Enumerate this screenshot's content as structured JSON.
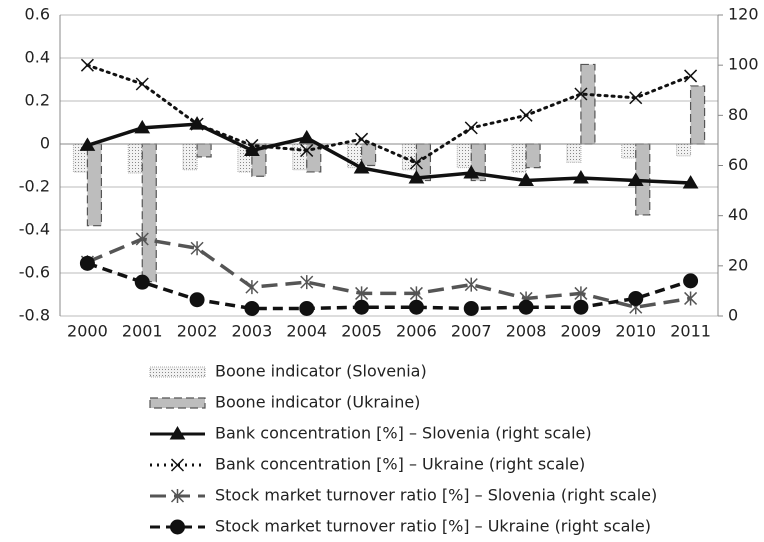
{
  "chart_data": {
    "type": "bar",
    "categories": [
      "2000",
      "2001",
      "2002",
      "2003",
      "2004",
      "2005",
      "2006",
      "2007",
      "2008",
      "2009",
      "2010",
      "2011"
    ],
    "ylim": [
      -0.8,
      0.6
    ],
    "yticks": [
      0.6,
      0.4,
      0.2,
      0,
      -0.2,
      -0.4,
      -0.6,
      -0.8
    ],
    "y2lim": [
      0,
      120
    ],
    "y2ticks": [
      0,
      20,
      40,
      60,
      80,
      100,
      120
    ],
    "grid": true,
    "legend": "bottom",
    "series": [
      {
        "name": "Boone indicator (Slovenia)",
        "type": "bar",
        "color": "#e6e6e6",
        "pattern": "dotted",
        "values": [
          -0.13,
          -0.135,
          -0.12,
          -0.13,
          -0.12,
          -0.11,
          -0.12,
          -0.11,
          -0.13,
          -0.085,
          -0.065,
          -0.055
        ]
      },
      {
        "name": "Boone indicator (Ukraine)",
        "type": "bar",
        "color": "#bdbdbd",
        "pattern": "dashed",
        "values": [
          -0.38,
          -0.64,
          -0.06,
          -0.15,
          -0.13,
          -0.1,
          -0.17,
          -0.17,
          -0.11,
          0.37,
          -0.33,
          0.27
        ]
      },
      {
        "name": "Bank concentration [%] – Slovenia (right scale)",
        "type": "line",
        "axis": "y2",
        "color": "#111111",
        "dash": "solid",
        "marker": "triangle",
        "values": [
          68,
          75,
          76.5,
          66,
          71,
          59,
          55,
          57,
          54,
          55,
          54,
          53
        ]
      },
      {
        "name": "Bank concentration [%] – Ukraine (right scale)",
        "type": "line",
        "axis": "y2",
        "color": "#111111",
        "dash": "dotted",
        "marker": "x",
        "values": [
          100,
          92.5,
          76.5,
          68,
          66,
          70.5,
          61,
          75,
          80,
          88.5,
          87,
          95.7
        ]
      },
      {
        "name": "Stock market turnover ratio [%] – Slovenia (right scale)",
        "type": "line",
        "axis": "y2",
        "color": "#555555",
        "dash": "dashed",
        "marker": "star",
        "values": [
          21.5,
          30.7,
          27,
          11.5,
          13.5,
          9,
          9,
          12.5,
          7,
          9,
          3.5,
          7
        ]
      },
      {
        "name": "Stock market turnover ratio [%] – Ukraine (right scale)",
        "type": "line",
        "axis": "y2",
        "color": "#111111",
        "dash": "dashed",
        "marker": "circle",
        "values": [
          21,
          13.5,
          6.5,
          3,
          3,
          3.5,
          3.5,
          3,
          3.5,
          3.5,
          7,
          14
        ]
      }
    ]
  }
}
